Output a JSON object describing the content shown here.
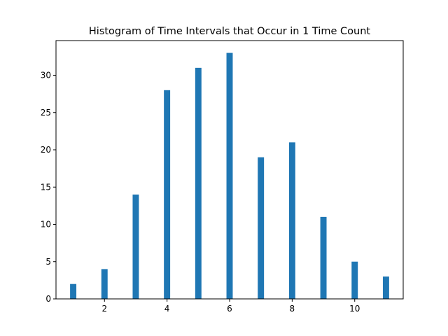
{
  "chart_data": {
    "type": "bar",
    "title": "Histogram of Time Intervals that Occur in 1 Time Count",
    "xlabel": "",
    "ylabel": "",
    "x": [
      1,
      2,
      3,
      4,
      5,
      6,
      7,
      8,
      9,
      10,
      11
    ],
    "values": [
      2,
      4,
      14,
      28,
      31,
      33,
      19,
      21,
      11,
      5,
      3
    ],
    "bar_width": 0.2,
    "xlim": [
      0.45,
      11.55
    ],
    "ylim": [
      0,
      34.65
    ],
    "xticks": [
      2,
      4,
      6,
      8,
      10
    ],
    "yticks": [
      0,
      5,
      10,
      15,
      20,
      25,
      30
    ],
    "bar_color": "#1f77b4",
    "grid": false,
    "legend": "none"
  }
}
